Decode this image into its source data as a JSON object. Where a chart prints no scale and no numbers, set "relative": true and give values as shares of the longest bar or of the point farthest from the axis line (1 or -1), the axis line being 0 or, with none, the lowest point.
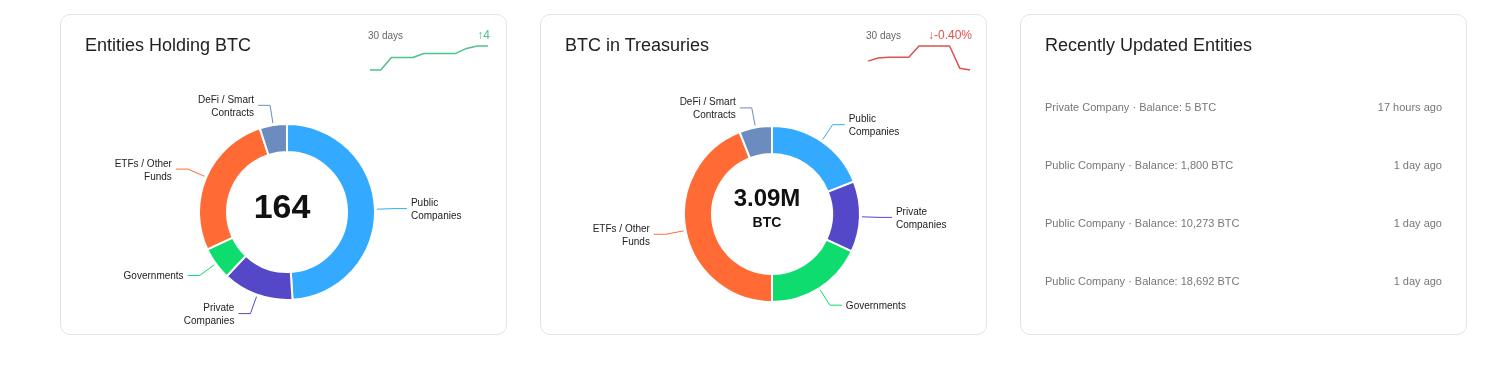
{
  "chart_data": [
    {
      "type": "donut",
      "title": "Entities Holding BTC",
      "categories": [
        "Public Companies",
        "Private Companies",
        "Governments",
        "ETFs / Other Funds",
        "DeFi / Smart Contracts"
      ],
      "values": [
        49,
        13,
        6,
        27,
        5
      ],
      "colors": [
        "#33aaff",
        "#5548c8",
        "#0fdc6e",
        "#ff6a35",
        "#6b8cbf"
      ],
      "annotations": [
        "164"
      ]
    },
    {
      "type": "line",
      "relative": true,
      "categories": [
        null,
        null,
        null,
        null,
        null,
        null,
        null,
        null,
        null,
        null,
        null,
        null
      ],
      "series": [
        {
          "color": "#4cc38a",
          "values": [
            0,
            0,
            0.52,
            0.52,
            0.52,
            0.69,
            0.69,
            0.69,
            0.69,
            0.9,
            1,
            1
          ]
        }
      ],
      "annotations": [
        "30 days",
        "↑4"
      ]
    },
    {
      "type": "donut",
      "title": "BTC in Treasuries",
      "categories": [
        "Public Companies",
        "Private Companies",
        "Governments",
        "ETFs / Other Funds",
        "DeFi / Smart Contracts"
      ],
      "values": [
        19,
        13,
        18,
        44,
        6
      ],
      "colors": [
        "#33aaff",
        "#5548c8",
        "#0fdc6e",
        "#ff6a35",
        "#6b8cbf"
      ],
      "annotations": [
        "3.09M",
        "BTC"
      ]
    },
    {
      "type": "line",
      "relative": true,
      "categories": [
        null,
        null,
        null,
        null,
        null,
        null,
        null,
        null,
        null,
        null,
        null
      ],
      "series": [
        {
          "color": "#d9534f",
          "values": [
            0.37,
            0.5,
            0.53,
            0.53,
            0.53,
            1,
            1,
            1,
            1,
            0.07,
            0
          ]
        }
      ],
      "annotations": [
        "30 days",
        "↓-0.40%"
      ]
    },
    {
      "type": "other",
      "title": "Recently Updated Entities",
      "annotations": [
        "17 hours ago",
        "Private Company · Balance: 5 BTC",
        "1 day ago",
        "Public Company · Balance: 1,800 BTC",
        "1 day ago",
        "Public Company · Balance: 10,273 BTC",
        "1 day ago",
        "Public Company · Balance: 18,692 BTC"
      ]
    }
  ]
}
